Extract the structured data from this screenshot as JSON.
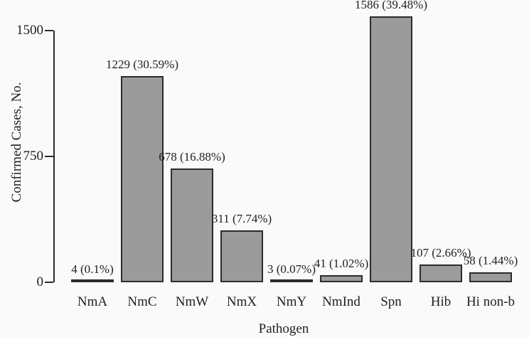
{
  "figure": {
    "background_color": "#fafafa",
    "bar_fill_color": "#9b9b9b",
    "bar_border_color": "#2b2b2b",
    "text_color": "#1f1f1f"
  },
  "chart_data": {
    "type": "bar",
    "title": "",
    "xlabel": "Pathogen",
    "ylabel": "Confirmed Cases, No.",
    "ylim": [
      0,
      1500
    ],
    "yticks": [
      "0",
      "750",
      "1500"
    ],
    "ytick_values": [
      0,
      750,
      1500
    ],
    "grid": false,
    "legend": null,
    "categories": [
      "NmA",
      "NmC",
      "NmW",
      "NmX",
      "NmY",
      "NmInd",
      "Spn",
      "Hib",
      "Hi non-b"
    ],
    "values": [
      4,
      1229,
      678,
      311,
      3,
      41,
      1586,
      107,
      58
    ],
    "bar_labels": [
      "4 (0.1%)",
      "1229 (30.59%)",
      "678 (16.88%)",
      "311 (7.74%)",
      "3 (0.07%)",
      "41 (1.02%)",
      "1586 (39.48%)",
      "107 (2.66%)",
      "58 (1.44%)"
    ]
  }
}
